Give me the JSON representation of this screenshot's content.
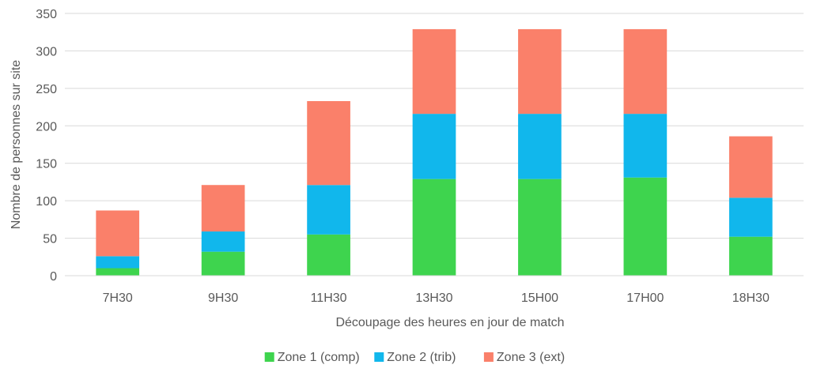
{
  "chart_data": {
    "type": "bar",
    "stacked": true,
    "title": "",
    "xlabel": "Découpage des heures en jour de match",
    "ylabel": "Nombre de personnes sur site",
    "ylim": [
      0,
      350
    ],
    "yticks": [
      0,
      50,
      100,
      150,
      200,
      250,
      300,
      350
    ],
    "grid": true,
    "legend_position": "bottom",
    "categories": [
      "7H30",
      "9H30",
      "11H30",
      "13H30",
      "15H00",
      "17H00",
      "18H30"
    ],
    "series": [
      {
        "name": "Zone 1 (comp)",
        "color": "#3ed44e",
        "values": [
          10,
          32,
          55,
          129,
          129,
          131,
          52
        ]
      },
      {
        "name": "Zone 2 (trib)",
        "color": "#11b7ec",
        "values": [
          16,
          27,
          66,
          87,
          87,
          85,
          52
        ]
      },
      {
        "name": "Zone 3 (ext)",
        "color": "#fa806a",
        "values": [
          61,
          62,
          112,
          113,
          113,
          113,
          82
        ]
      }
    ]
  }
}
